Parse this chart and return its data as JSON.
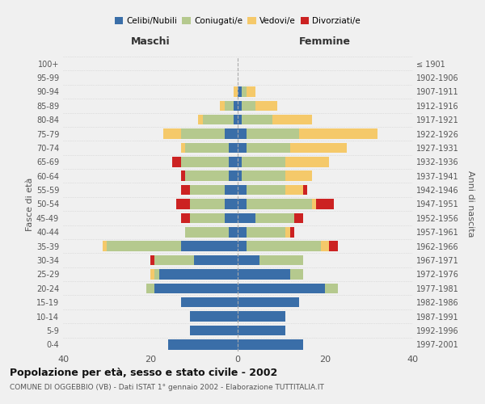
{
  "age_groups": [
    "100+",
    "95-99",
    "90-94",
    "85-89",
    "80-84",
    "75-79",
    "70-74",
    "65-69",
    "60-64",
    "55-59",
    "50-54",
    "45-49",
    "40-44",
    "35-39",
    "30-34",
    "25-29",
    "20-24",
    "15-19",
    "10-14",
    "5-9",
    "0-4"
  ],
  "birth_years": [
    "≤ 1901",
    "1902-1906",
    "1907-1911",
    "1912-1916",
    "1917-1921",
    "1922-1926",
    "1927-1931",
    "1932-1936",
    "1937-1941",
    "1942-1946",
    "1947-1951",
    "1952-1956",
    "1957-1961",
    "1962-1966",
    "1967-1971",
    "1972-1976",
    "1977-1981",
    "1982-1986",
    "1987-1991",
    "1992-1996",
    "1997-2001"
  ],
  "maschi": {
    "celibi": [
      0,
      0,
      0,
      1,
      1,
      3,
      2,
      2,
      2,
      3,
      3,
      3,
      2,
      13,
      10,
      18,
      19,
      13,
      11,
      11,
      16
    ],
    "coniugati": [
      0,
      0,
      0,
      2,
      7,
      10,
      10,
      11,
      10,
      8,
      8,
      8,
      10,
      17,
      9,
      1,
      2,
      0,
      0,
      0,
      0
    ],
    "vedovi": [
      0,
      0,
      1,
      1,
      1,
      4,
      1,
      0,
      0,
      0,
      0,
      0,
      0,
      1,
      0,
      1,
      0,
      0,
      0,
      0,
      0
    ],
    "divorziati": [
      0,
      0,
      0,
      0,
      0,
      0,
      0,
      2,
      1,
      2,
      3,
      2,
      0,
      0,
      1,
      0,
      0,
      0,
      0,
      0,
      0
    ]
  },
  "femmine": {
    "nubili": [
      0,
      0,
      1,
      1,
      1,
      2,
      2,
      1,
      1,
      2,
      2,
      4,
      2,
      2,
      5,
      12,
      20,
      14,
      11,
      11,
      15
    ],
    "coniugate": [
      0,
      0,
      1,
      3,
      7,
      12,
      10,
      10,
      10,
      9,
      15,
      9,
      9,
      17,
      10,
      3,
      3,
      0,
      0,
      0,
      0
    ],
    "vedove": [
      0,
      0,
      2,
      5,
      9,
      18,
      13,
      10,
      6,
      4,
      1,
      0,
      1,
      2,
      0,
      0,
      0,
      0,
      0,
      0,
      0
    ],
    "divorziate": [
      0,
      0,
      0,
      0,
      0,
      0,
      0,
      0,
      0,
      1,
      4,
      2,
      1,
      2,
      0,
      0,
      0,
      0,
      0,
      0,
      0
    ]
  },
  "colors": {
    "celibi": "#3a6ea8",
    "coniugati": "#b5c98e",
    "vedovi": "#f5c96a",
    "divorziati": "#cc2222"
  },
  "title": "Popolazione per età, sesso e stato civile - 2002",
  "subtitle": "COMUNE DI OGGEBBIO (VB) - Dati ISTAT 1° gennaio 2002 - Elaborazione TUTTITALIA.IT",
  "xlabel_left": "Maschi",
  "xlabel_right": "Femmine",
  "ylabel_left": "Fasce di età",
  "ylabel_right": "Anni di nascita",
  "xlim": 40,
  "background_color": "#f0f0f0"
}
